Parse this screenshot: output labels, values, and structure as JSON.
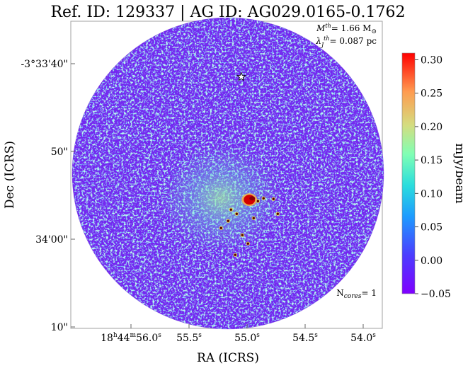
{
  "chart_data": {
    "type": "heatmap",
    "title": "Ref. ID: 129337 | AG ID: AG029.0165-0.1762",
    "xlabel": "RA (ICRS)",
    "ylabel": "Dec (ICRS)",
    "x_ticks": [
      {
        "h": "18",
        "m": "44",
        "s": "56.0",
        "value_s": 56.0
      },
      {
        "s": "55.5",
        "value_s": 55.5
      },
      {
        "s": "55.0",
        "value_s": 55.0
      },
      {
        "s": "54.5",
        "value_s": 54.5
      },
      {
        "s": "54.0",
        "value_s": 54.0
      }
    ],
    "y_ticks": [
      {
        "label": "-3°33'40\"",
        "value_arcsec": 40
      },
      {
        "label": "50\"",
        "value_arcsec": 50
      },
      {
        "label": "34'00\"",
        "value_arcsec": 60
      },
      {
        "label": "10\"",
        "value_arcsec": 70
      }
    ],
    "annotations": {
      "mass_label": "= 1.66 M",
      "lambda_label": "= 0.087 pc",
      "ncores_label": "= 1",
      "ncores_count": 1
    },
    "colorbar": {
      "label": "mJy/beam",
      "colormap": "rainbow",
      "range": [
        -0.05,
        0.31
      ],
      "ticks": [
        "0.30",
        "0.25",
        "0.20",
        "0.15",
        "0.10",
        "0.05",
        "0.00",
        "−0.05"
      ],
      "tick_values": [
        0.3,
        0.25,
        0.2,
        0.15,
        0.1,
        0.05,
        0.0,
        -0.05
      ]
    },
    "peak": {
      "ra_s": 54.98,
      "dec_arcsec": 55.5,
      "value": 0.31
    },
    "star_marker": {
      "ra_s": 55.05,
      "dec_arcsec": 41.5
    },
    "grid": false
  }
}
